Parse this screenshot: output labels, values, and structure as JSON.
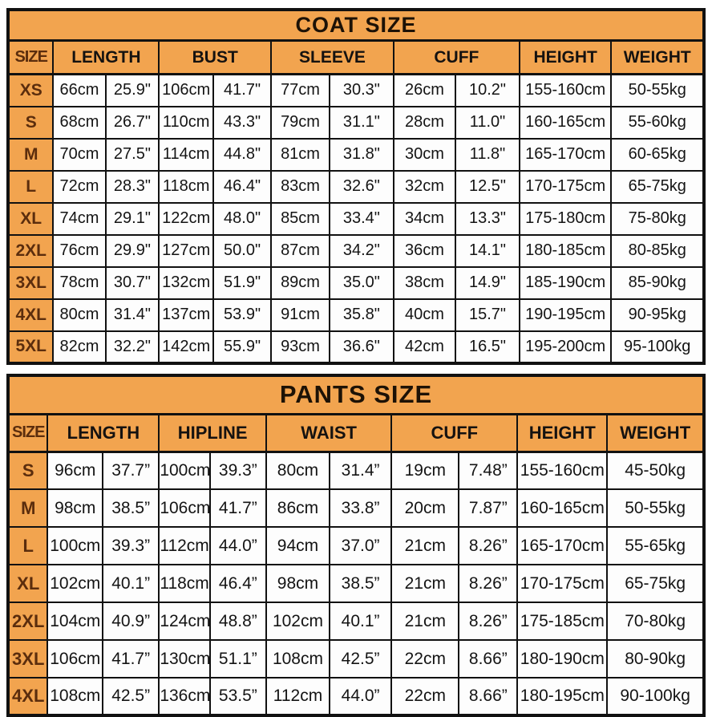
{
  "colors": {
    "orange_header": "#F2A44F",
    "table_border": "#111111",
    "cell_background": "#fdfdfd",
    "size_label_text": "#5b2d0d",
    "value_text": "#141414"
  },
  "chart_data": [
    {
      "type": "table",
      "title": "COAT SIZE",
      "header_groups": [
        {
          "label": "SIZE",
          "span": 1
        },
        {
          "label": "LENGTH",
          "span": 2
        },
        {
          "label": "BUST",
          "span": 2
        },
        {
          "label": "SLEEVE",
          "span": 2
        },
        {
          "label": "CUFF",
          "span": 2
        },
        {
          "label": "HEIGHT",
          "span": 1
        },
        {
          "label": "WEIGHT",
          "span": 1
        }
      ],
      "rows": [
        [
          "XS",
          "66cm",
          "25.9\"",
          "106cm",
          "41.7\"",
          "77cm",
          "30.3\"",
          "26cm",
          "10.2\"",
          "155-160cm",
          "50-55kg"
        ],
        [
          "S",
          "68cm",
          "26.7\"",
          "110cm",
          "43.3\"",
          "79cm",
          "31.1\"",
          "28cm",
          "11.0\"",
          "160-165cm",
          "55-60kg"
        ],
        [
          "M",
          "70cm",
          "27.5\"",
          "114cm",
          "44.8\"",
          "81cm",
          "31.8\"",
          "30cm",
          "11.8\"",
          "165-170cm",
          "60-65kg"
        ],
        [
          "L",
          "72cm",
          "28.3\"",
          "118cm",
          "46.4\"",
          "83cm",
          "32.6\"",
          "32cm",
          "12.5\"",
          "170-175cm",
          "65-75kg"
        ],
        [
          "XL",
          "74cm",
          "29.1\"",
          "122cm",
          "48.0\"",
          "85cm",
          "33.4\"",
          "34cm",
          "13.3\"",
          "175-180cm",
          "75-80kg"
        ],
        [
          "2XL",
          "76cm",
          "29.9\"",
          "127cm",
          "50.0\"",
          "87cm",
          "34.2\"",
          "36cm",
          "14.1\"",
          "180-185cm",
          "80-85kg"
        ],
        [
          "3XL",
          "78cm",
          "30.7\"",
          "132cm",
          "51.9\"",
          "89cm",
          "35.0\"",
          "38cm",
          "14.9\"",
          "185-190cm",
          "85-90kg"
        ],
        [
          "4XL",
          "80cm",
          "31.4\"",
          "137cm",
          "53.9\"",
          "91cm",
          "35.8\"",
          "40cm",
          "15.7\"",
          "190-195cm",
          "90-95kg"
        ],
        [
          "5XL",
          "82cm",
          "32.2\"",
          "142cm",
          "55.9\"",
          "93cm",
          "36.6\"",
          "42cm",
          "16.5\"",
          "195-200cm",
          "95-100kg"
        ]
      ]
    },
    {
      "type": "table",
      "title": "PANTS SIZE",
      "header_groups": [
        {
          "label": "SIZE",
          "span": 1
        },
        {
          "label": "LENGTH",
          "span": 2
        },
        {
          "label": "HIPLINE",
          "span": 2
        },
        {
          "label": "WAIST",
          "span": 2
        },
        {
          "label": "CUFF",
          "span": 2
        },
        {
          "label": "HEIGHT",
          "span": 1
        },
        {
          "label": "WEIGHT",
          "span": 1
        }
      ],
      "rows": [
        [
          "S",
          "96cm",
          "37.7”",
          "100cm",
          "39.3”",
          "80cm",
          "31.4”",
          "19cm",
          "7.48”",
          "155-160cm",
          "45-50kg"
        ],
        [
          "M",
          "98cm",
          "38.5”",
          "106cm",
          "41.7”",
          "86cm",
          "33.8”",
          "20cm",
          "7.87”",
          "160-165cm",
          "50-55kg"
        ],
        [
          "L",
          "100cm",
          "39.3”",
          "112cm",
          "44.0”",
          "94cm",
          "37.0”",
          "21cm",
          "8.26”",
          "165-170cm",
          "55-65kg"
        ],
        [
          "XL",
          "102cm",
          "40.1”",
          "118cm",
          "46.4”",
          "98cm",
          "38.5”",
          "21cm",
          "8.26”",
          "170-175cm",
          "65-75kg"
        ],
        [
          "2XL",
          "104cm",
          "40.9”",
          "124cm",
          "48.8”",
          "102cm",
          "40.1”",
          "21cm",
          "8.26”",
          "175-185cm",
          "70-80kg"
        ],
        [
          "3XL",
          "106cm",
          "41.7”",
          "130cm",
          "51.1”",
          "108cm",
          "42.5”",
          "22cm",
          "8.66”",
          "180-190cm",
          "80-90kg"
        ],
        [
          "4XL",
          "108cm",
          "42.5”",
          "136cm",
          "53.5”",
          "112cm",
          "44.0”",
          "22cm",
          "8.66”",
          "180-195cm",
          "90-100kg"
        ]
      ]
    }
  ]
}
